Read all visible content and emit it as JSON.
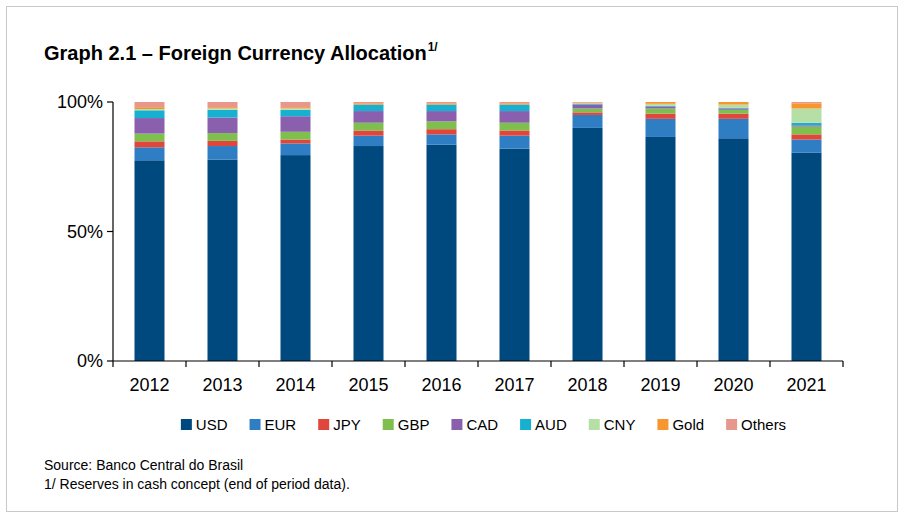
{
  "chart_data": {
    "type": "bar",
    "stacked": true,
    "title": "Graph 2.1 – Foreign Currency Allocation",
    "title_superscript": "1/",
    "annotations": [
      "Source: Banco Central do Brasil",
      "1/ Reserves in cash concept (end of period data)."
    ],
    "categories": [
      "2012",
      "2013",
      "2014",
      "2015",
      "2016",
      "2017",
      "2018",
      "2019",
      "2020",
      "2021"
    ],
    "series": [
      {
        "name": "USD",
        "color": "#00497f",
        "values": [
          77.5,
          77.8,
          79.5,
          83,
          83.5,
          82,
          90,
          86.5,
          86,
          80.5
        ]
      },
      {
        "name": "EUR",
        "color": "#2f7ec4",
        "values": [
          5,
          5.2,
          4.5,
          4,
          4,
          5,
          5,
          7,
          7.5,
          5
        ]
      },
      {
        "name": "JPY",
        "color": "#e0463c",
        "values": [
          2.3,
          2,
          1.5,
          2,
          2,
          2,
          1,
          2,
          2,
          2
        ]
      },
      {
        "name": "GBP",
        "color": "#7fbf4e",
        "values": [
          3,
          3,
          3,
          3,
          3,
          3,
          1.5,
          2,
          1.5,
          3
        ]
      },
      {
        "name": "CAD",
        "color": "#8a5fad",
        "values": [
          6,
          6,
          6,
          4.5,
          4,
          4.5,
          1.5,
          0.8,
          0.5,
          0.5
        ]
      },
      {
        "name": "AUD",
        "color": "#17b0d0",
        "values": [
          3,
          3,
          2.5,
          2.5,
          2.5,
          2.5,
          0.3,
          0.2,
          0.2,
          1
        ]
      },
      {
        "name": "CNY",
        "color": "#b6dfa5",
        "values": [
          0.5,
          0.5,
          0.5,
          0,
          0,
          0,
          0.2,
          0.8,
          1.3,
          5.5
        ]
      },
      {
        "name": "Gold",
        "color": "#f7962f",
        "values": [
          0.7,
          0.5,
          0.5,
          0.5,
          0.5,
          0.5,
          0.3,
          0.7,
          1,
          2
        ]
      },
      {
        "name": "Others",
        "color": "#e8978c",
        "values": [
          2,
          2,
          2,
          0.5,
          0.5,
          0.5,
          0.2,
          0,
          0,
          0.5
        ]
      }
    ],
    "ylim": [
      0,
      100
    ],
    "yticks": [
      {
        "value": 0,
        "label": "0%"
      },
      {
        "value": 50,
        "label": "50%"
      },
      {
        "value": 100,
        "label": "100%"
      }
    ],
    "grid": false,
    "legend": "bottom"
  }
}
